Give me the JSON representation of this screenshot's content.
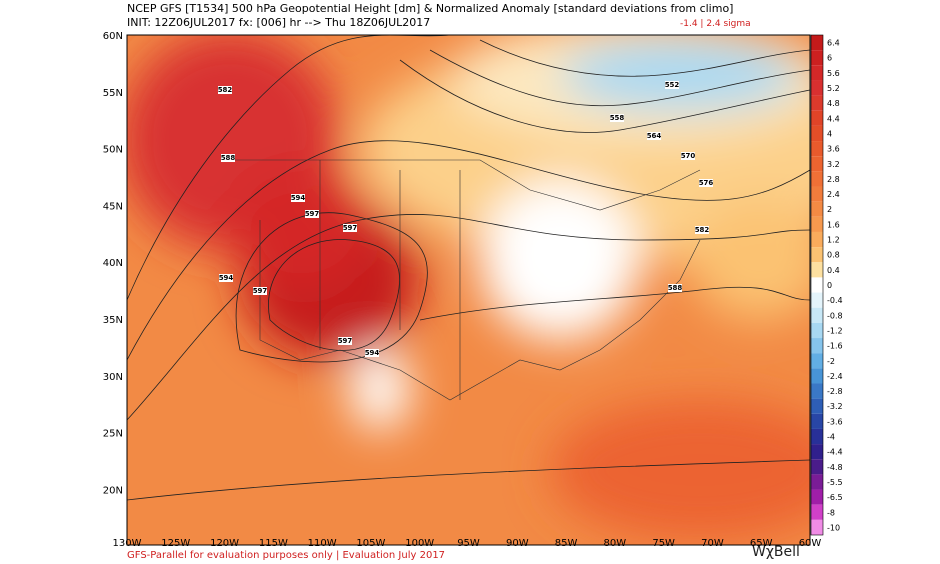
{
  "header": {
    "line1": "NCEP GFS [T1534] 500 hPa Geopotential Height [dm] & Normalized Anomaly [standard deviations from climo]",
    "line2": "INIT: 12Z06JUL2017 fx: [006] hr --> Thu 18Z06JUL2017",
    "range": "-1.4 | 2.4 sigma"
  },
  "lat_labels": [
    "60N",
    "55N",
    "50N",
    "45N",
    "40N",
    "35N",
    "30N",
    "25N",
    "20N"
  ],
  "lon_labels": [
    "130W",
    "125W",
    "120W",
    "115W",
    "110W",
    "105W",
    "100W",
    "95W",
    "90W",
    "85W",
    "80W",
    "75W",
    "70W",
    "65W",
    "60W"
  ],
  "colorbar": [
    {
      "label": "6.4",
      "color": "#c41a1a"
    },
    {
      "label": "6",
      "color": "#cc2020"
    },
    {
      "label": "5.6",
      "color": "#d42828"
    },
    {
      "label": "5.2",
      "color": "#d83030"
    },
    {
      "label": "4.8",
      "color": "#dc3a2c"
    },
    {
      "label": "4.4",
      "color": "#e04428"
    },
    {
      "label": "4",
      "color": "#e44e28"
    },
    {
      "label": "3.6",
      "color": "#e85a2c"
    },
    {
      "label": "3.2",
      "color": "#ec6430"
    },
    {
      "label": "2.8",
      "color": "#ef7036"
    },
    {
      "label": "2.4",
      "color": "#f17c3c"
    },
    {
      "label": "2",
      "color": "#f38a44"
    },
    {
      "label": "1.6",
      "color": "#f6994e"
    },
    {
      "label": "1.2",
      "color": "#f9ab5c"
    },
    {
      "label": "0.8",
      "color": "#fbc272"
    },
    {
      "label": "0.4",
      "color": "#fde0a0"
    },
    {
      "label": "0",
      "color": "#ffffff"
    },
    {
      "label": "-0.4",
      "color": "#e4f4fb"
    },
    {
      "label": "-0.8",
      "color": "#c8e8f7"
    },
    {
      "label": "-1.2",
      "color": "#a8d8f2"
    },
    {
      "label": "-1.6",
      "color": "#86c4ec"
    },
    {
      "label": "-2",
      "color": "#62aee4"
    },
    {
      "label": "-2.4",
      "color": "#4894d6"
    },
    {
      "label": "-2.8",
      "color": "#3a78c6"
    },
    {
      "label": "-3.2",
      "color": "#2e5eb6"
    },
    {
      "label": "-3.6",
      "color": "#2846a6"
    },
    {
      "label": "-4",
      "color": "#283098"
    },
    {
      "label": "-4.4",
      "color": "#30208c"
    },
    {
      "label": "-4.8",
      "color": "#4a1c8a"
    },
    {
      "label": "-5.5",
      "color": "#7a1c96"
    },
    {
      "label": "-6.5",
      "color": "#a01ea8"
    },
    {
      "label": "-8",
      "color": "#d040c8"
    },
    {
      "label": "-10",
      "color": "#f08ce6"
    }
  ],
  "contour_labels": [
    "582",
    "588",
    "594",
    "597",
    "597",
    "594",
    "597",
    "597",
    "594",
    "552",
    "558",
    "564",
    "570",
    "576",
    "582",
    "588"
  ],
  "footer": "GFS-Parallel for evaluation purposes only | Evaluation July 2017",
  "logo": "WχBell"
}
